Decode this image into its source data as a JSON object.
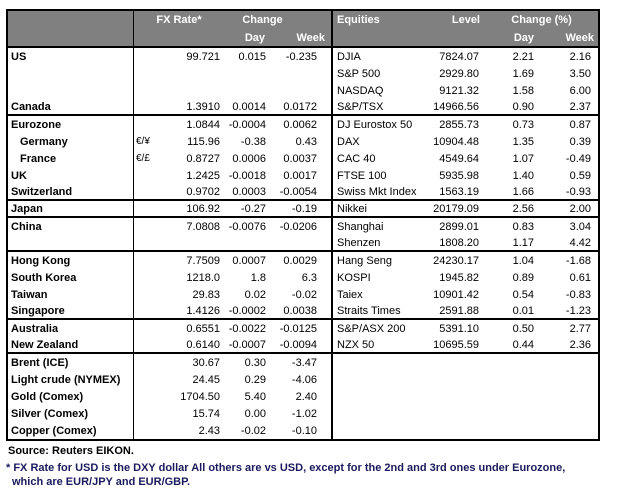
{
  "colors": {
    "header_bg": "#808080",
    "header_text": "#ffffff",
    "border": "#000000",
    "footnote_text": "#1a1a5e"
  },
  "table": {
    "fx_header": {
      "rate": "FX Rate*",
      "change": "Change",
      "day": "Day",
      "week": "Week"
    },
    "eq_header": {
      "name": "Equities",
      "level": "Level",
      "change": "Change (%)",
      "day": "Day",
      "week": "Week"
    },
    "rows": [
      {
        "country": "US",
        "pair": "",
        "fx_rate": "99.721",
        "fx_day": "0.015",
        "fx_week": "-0.235",
        "equity": "DJIA",
        "level": "7824.07",
        "eq_day": "2.21",
        "eq_week": "2.16",
        "indent": false,
        "group_end": false
      },
      {
        "country": "",
        "pair": "",
        "fx_rate": "",
        "fx_day": "",
        "fx_week": "",
        "equity": "S&P 500",
        "level": "2929.80",
        "eq_day": "1.69",
        "eq_week": "3.50",
        "indent": false,
        "group_end": false
      },
      {
        "country": "",
        "pair": "",
        "fx_rate": "",
        "fx_day": "",
        "fx_week": "",
        "equity": "NASDAQ",
        "level": "9121.32",
        "eq_day": "1.58",
        "eq_week": "6.00",
        "indent": false,
        "group_end": false
      },
      {
        "country": "Canada",
        "pair": "",
        "fx_rate": "1.3910",
        "fx_day": "0.0014",
        "fx_week": "0.0172",
        "equity": "S&P/TSX",
        "level": "14966.56",
        "eq_day": "0.90",
        "eq_week": "2.37",
        "indent": false,
        "group_end": true
      },
      {
        "country": "Eurozone",
        "pair": "",
        "fx_rate": "1.0844",
        "fx_day": "-0.0004",
        "fx_week": "0.0062",
        "equity": "DJ Eurostox 50",
        "level": "2855.73",
        "eq_day": "0.73",
        "eq_week": "0.87",
        "indent": false,
        "group_end": false
      },
      {
        "country": "Germany",
        "pair": "€/¥",
        "fx_rate": "115.96",
        "fx_day": "-0.38",
        "fx_week": "0.43",
        "equity": "DAX",
        "level": "10904.48",
        "eq_day": "1.35",
        "eq_week": "0.39",
        "indent": true,
        "group_end": false
      },
      {
        "country": "France",
        "pair": "€/£",
        "fx_rate": "0.8727",
        "fx_day": "0.0006",
        "fx_week": "0.0037",
        "equity": "CAC 40",
        "level": "4549.64",
        "eq_day": "1.07",
        "eq_week": "-0.49",
        "indent": true,
        "group_end": false
      },
      {
        "country": "UK",
        "pair": "",
        "fx_rate": "1.2425",
        "fx_day": "-0.0018",
        "fx_week": "0.0017",
        "equity": "FTSE 100",
        "level": "5935.98",
        "eq_day": "1.40",
        "eq_week": "0.59",
        "indent": false,
        "group_end": false
      },
      {
        "country": "Switzerland",
        "pair": "",
        "fx_rate": "0.9702",
        "fx_day": "0.0003",
        "fx_week": "-0.0054",
        "equity": "Swiss Mkt Index",
        "level": "1563.19",
        "eq_day": "1.66",
        "eq_week": "-0.93",
        "indent": false,
        "group_end": true
      },
      {
        "country": "Japan",
        "pair": "",
        "fx_rate": "106.92",
        "fx_day": "-0.27",
        "fx_week": "-0.19",
        "equity": "Nikkei",
        "level": "20179.09",
        "eq_day": "2.56",
        "eq_week": "2.00",
        "indent": false,
        "group_end": true
      },
      {
        "country": "China",
        "pair": "",
        "fx_rate": "7.0808",
        "fx_day": "-0.0076",
        "fx_week": "-0.0206",
        "equity": "Shanghai",
        "level": "2899.01",
        "eq_day": "0.83",
        "eq_week": "3.04",
        "indent": false,
        "group_end": false
      },
      {
        "country": "",
        "pair": "",
        "fx_rate": "",
        "fx_day": "",
        "fx_week": "",
        "equity": "Shenzen",
        "level": "1808.20",
        "eq_day": "1.17",
        "eq_week": "4.42",
        "indent": false,
        "group_end": true
      },
      {
        "country": "Hong Kong",
        "pair": "",
        "fx_rate": "7.7509",
        "fx_day": "0.0007",
        "fx_week": "0.0029",
        "equity": "Hang Seng",
        "level": "24230.17",
        "eq_day": "1.04",
        "eq_week": "-1.68",
        "indent": false,
        "group_end": false
      },
      {
        "country": "South Korea",
        "pair": "",
        "fx_rate": "1218.0",
        "fx_day": "1.8",
        "fx_week": "6.3",
        "equity": "KOSPI",
        "level": "1945.82",
        "eq_day": "0.89",
        "eq_week": "0.61",
        "indent": false,
        "group_end": false
      },
      {
        "country": "Taiwan",
        "pair": "",
        "fx_rate": "29.83",
        "fx_day": "0.02",
        "fx_week": "-0.02",
        "equity": "Taiex",
        "level": "10901.42",
        "eq_day": "0.54",
        "eq_week": "-0.83",
        "indent": false,
        "group_end": false
      },
      {
        "country": "Singapore",
        "pair": "",
        "fx_rate": "1.4126",
        "fx_day": "-0.0002",
        "fx_week": "0.0038",
        "equity": "Straits Times",
        "level": "2591.88",
        "eq_day": "0.01",
        "eq_week": "-1.23",
        "indent": false,
        "group_end": true
      },
      {
        "country": "Australia",
        "pair": "",
        "fx_rate": "0.6551",
        "fx_day": "-0.0022",
        "fx_week": "-0.0125",
        "equity": "S&P/ASX  200",
        "level": "5391.10",
        "eq_day": "0.50",
        "eq_week": "2.77",
        "indent": false,
        "group_end": false
      },
      {
        "country": "New Zealand",
        "pair": "",
        "fx_rate": "0.6140",
        "fx_day": "-0.0007",
        "fx_week": "-0.0094",
        "equity": "NZX 50",
        "level": "10695.59",
        "eq_day": "0.44",
        "eq_week": "2.36",
        "indent": false,
        "group_end": true
      },
      {
        "country": "Brent (ICE)",
        "pair": "",
        "fx_rate": "30.67",
        "fx_day": "0.30",
        "fx_week": "-3.47",
        "equity": "",
        "level": "",
        "eq_day": "",
        "eq_week": "",
        "indent": false,
        "group_end": false
      },
      {
        "country": "Light crude (NYMEX)",
        "pair": "",
        "fx_rate": "24.45",
        "fx_day": "0.29",
        "fx_week": "-4.06",
        "equity": "",
        "level": "",
        "eq_day": "",
        "eq_week": "",
        "indent": false,
        "group_end": false
      },
      {
        "country": "Gold (Comex)",
        "pair": "",
        "fx_rate": "1704.50",
        "fx_day": "5.40",
        "fx_week": "2.40",
        "equity": "",
        "level": "",
        "eq_day": "",
        "eq_week": "",
        "indent": false,
        "group_end": false
      },
      {
        "country": "Silver (Comex)",
        "pair": "",
        "fx_rate": "15.74",
        "fx_day": "0.00",
        "fx_week": "-1.02",
        "equity": "",
        "level": "",
        "eq_day": "",
        "eq_week": "",
        "indent": false,
        "group_end": false
      },
      {
        "country": "Copper (Comex)",
        "pair": "",
        "fx_rate": "2.43",
        "fx_day": "-0.02",
        "fx_week": "-0.10",
        "equity": "",
        "level": "",
        "eq_day": "",
        "eq_week": "",
        "indent": false,
        "group_end": false
      }
    ]
  },
  "footer": {
    "source": "Source:  Reuters EIKON.",
    "footnote_line1": "* FX Rate for USD is the DXY dollar  All others are vs USD, except for the 2nd and 3rd ones under Eurozone,",
    "footnote_line2": "which are EUR/JPY and EUR/GBP."
  }
}
